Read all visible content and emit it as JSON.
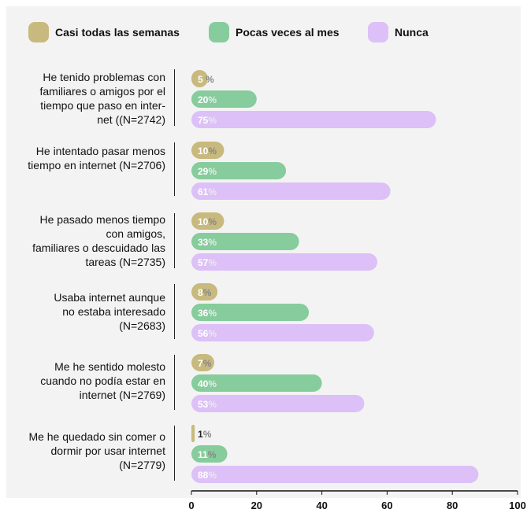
{
  "chart_data": {
    "type": "bar",
    "orientation": "horizontal",
    "categories": [
      "He tenido problemas con\nfamiliares o amigos por el\ntiempo que paso en inter-\nnet ((N=2742)",
      "He intentado pasar menos\ntiempo en internet (N=2706)",
      "He pasado menos tiempo\ncon amigos,\nfamiliares o descuidado las\ntareas (N=2735)",
      "Usaba internet aunque\nno estaba interesado\n(N=2683)",
      "Me he sentido molesto\ncuando no podía estar en\ninternet (N=2769)",
      "Me he quedado sin comer o\ndormir por usar internet\n(N=2779)"
    ],
    "series": [
      {
        "name": "Casi todas las semanas",
        "color": "#c8b97e",
        "values": [
          5,
          10,
          10,
          8,
          7,
          1
        ],
        "labels": [
          "5 %",
          "10%",
          "10%",
          "8%",
          "7%",
          "1%"
        ]
      },
      {
        "name": "Pocas veces al mes",
        "color": "#86cc9c",
        "values": [
          20,
          29,
          33,
          36,
          40,
          11
        ],
        "labels": [
          "20%",
          "29%",
          "33%",
          "36%",
          "40%",
          "11%"
        ]
      },
      {
        "name": "Nunca",
        "color": "#dcc0f7",
        "values": [
          75,
          61,
          57,
          56,
          53,
          88
        ],
        "labels": [
          "75%",
          "61%",
          "57%",
          "56%",
          "53%",
          "88%"
        ]
      }
    ],
    "xlim": [
      0,
      100
    ],
    "xticks": [
      "0",
      "20",
      "40",
      "60",
      "80",
      "100"
    ],
    "grid": false,
    "legend": "top"
  }
}
